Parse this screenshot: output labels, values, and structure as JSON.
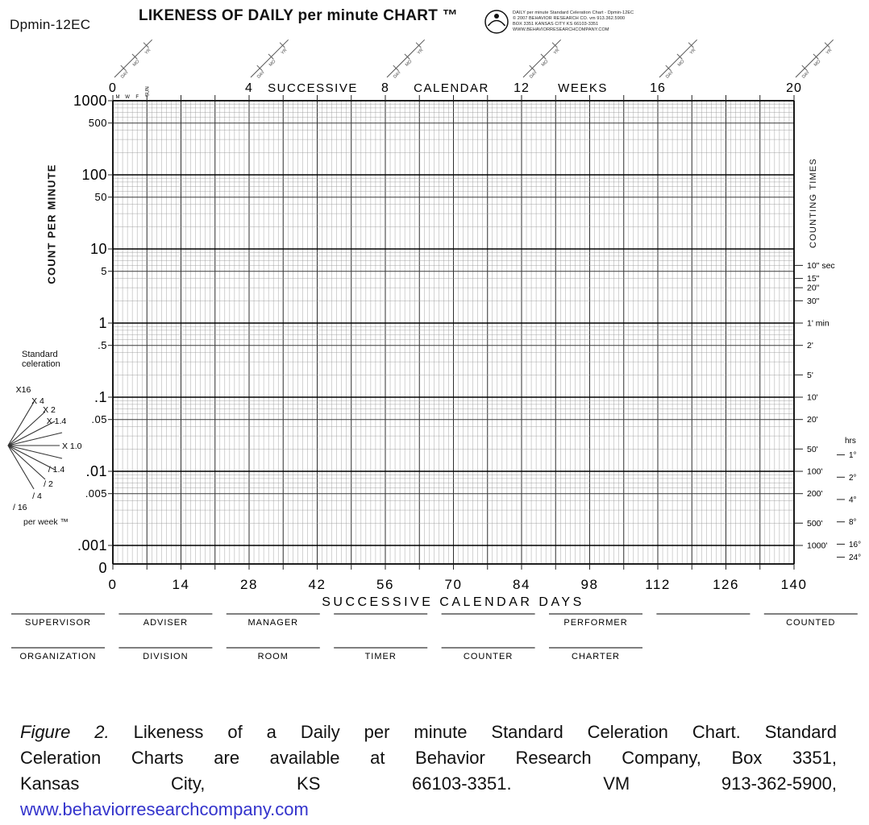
{
  "page": {
    "form_id": "Dpmin-12EC",
    "title": "LIKENESS OF DAILY per minute CHART ™"
  },
  "publisher_block": {
    "lines": [
      "DAILY per minute Standard Celeration Chart  -  Dpmin-12EC",
      "© 2007 BEHAVIOR RESEARCH CO. vm 913.362.5900",
      "BOX 3351 KANSAS CITY KS 66103-3351",
      "WWW.BEHAVIORRESEARCHCOMPANY.COM"
    ]
  },
  "chart_data": {
    "type": "semilog-grid",
    "note": "Blank Standard Celeration charting form; no data series plotted.",
    "series": [],
    "top_axis": {
      "title_words": [
        "SUCCESSIVE",
        "CALENDAR",
        "WEEKS"
      ],
      "ticks": [
        {
          "label": "0",
          "week": 0
        },
        {
          "label": "4",
          "week": 4
        },
        {
          "label": "8",
          "week": 8
        },
        {
          "label": "12",
          "week": 12
        },
        {
          "label": "16",
          "week": 16
        },
        {
          "label": "20",
          "week": 20
        }
      ],
      "date_tick_labels": [
        "DAY",
        "MO",
        "YR"
      ]
    },
    "bottom_axis": {
      "label": "SUCCESSIVE CALENDAR DAYS",
      "ticks": [
        0,
        14,
        28,
        42,
        56,
        70,
        84,
        98,
        112,
        126,
        140
      ],
      "range": [
        0,
        140
      ]
    },
    "left_axis": {
      "label": "COUNT PER MINUTE",
      "scale": "log10",
      "range": [
        0.001,
        1000
      ],
      "ticks": [
        {
          "label": "1000",
          "value": 1000,
          "major": true
        },
        {
          "label": "500",
          "value": 500,
          "major": false
        },
        {
          "label": "100",
          "value": 100,
          "major": true
        },
        {
          "label": "50",
          "value": 50,
          "major": false
        },
        {
          "label": "10",
          "value": 10,
          "major": true
        },
        {
          "label": "5",
          "value": 5,
          "major": false
        },
        {
          "label": "1",
          "value": 1,
          "major": true
        },
        {
          "label": ".5",
          "value": 0.5,
          "major": false
        },
        {
          "label": ".1",
          "value": 0.1,
          "major": true
        },
        {
          "label": ".05",
          "value": 0.05,
          "major": false
        },
        {
          "label": ".01",
          "value": 0.01,
          "major": true
        },
        {
          "label": ".005",
          "value": 0.005,
          "major": false
        },
        {
          "label": ".001",
          "value": 0.001,
          "major": true
        },
        {
          "label": "0",
          "value": null,
          "major": true
        }
      ]
    },
    "right_axis": {
      "label": "COUNTING TIMES",
      "hrs_header": "hrs",
      "sec_min_ticks": [
        {
          "label": "10\" sec",
          "rate": 6
        },
        {
          "label": "15\"",
          "rate": 4
        },
        {
          "label": "20\"",
          "rate": 3
        },
        {
          "label": "30\"",
          "rate": 2
        },
        {
          "label": "1' min",
          "rate": 1
        },
        {
          "label": "2'",
          "rate": 0.5
        },
        {
          "label": "5'",
          "rate": 0.2
        },
        {
          "label": "10'",
          "rate": 0.1
        },
        {
          "label": "20'",
          "rate": 0.05
        },
        {
          "label": "50'",
          "rate": 0.02
        },
        {
          "label": "100'",
          "rate": 0.01
        },
        {
          "label": "200'",
          "rate": 0.005
        },
        {
          "label": "500'",
          "rate": 0.002
        },
        {
          "label": "1000'",
          "rate": 0.001
        }
      ],
      "hr_ticks": [
        {
          "label": "1°",
          "rate": 0.01667
        },
        {
          "label": "2°",
          "rate": 0.00833
        },
        {
          "label": "4°",
          "rate": 0.00417
        },
        {
          "label": "8°",
          "rate": 0.00208
        },
        {
          "label": "16°",
          "rate": 0.00104
        },
        {
          "label": "24°",
          "rate": 0.000694
        }
      ]
    },
    "day_letters": {
      "mon": "M",
      "wed": "W",
      "fri": "F",
      "sun": "SUN"
    },
    "celeration_fan": {
      "title": "Standard\nceleration",
      "labels": [
        "X16",
        "X 4",
        "X 2",
        "X 1.4",
        "X 1.0",
        "/ 1.4",
        "/ 2",
        "/ 4",
        "/ 16"
      ],
      "footer": "per week ™"
    }
  },
  "footer_blanks": {
    "row1": [
      "SUPERVISOR",
      "ADVISER",
      "MANAGER",
      "",
      "",
      "PERFORMER",
      "",
      "COUNTED"
    ],
    "row2": [
      "ORGANIZATION",
      "DIVISION",
      "ROOM",
      "TIMER",
      "COUNTER",
      "CHARTER"
    ]
  },
  "caption": {
    "figure_label": "Figure 2.",
    "line1_rest": " Likeness of a Daily per minute Standard Celeration Chart. Standard",
    "line2": "Celeration Charts are available at Behavior Research Company, Box 3351,",
    "line3": "Kansas City, KS 66103-3351. VM 913-362-5900,",
    "link": "www.behaviorresearchcompany.com"
  }
}
